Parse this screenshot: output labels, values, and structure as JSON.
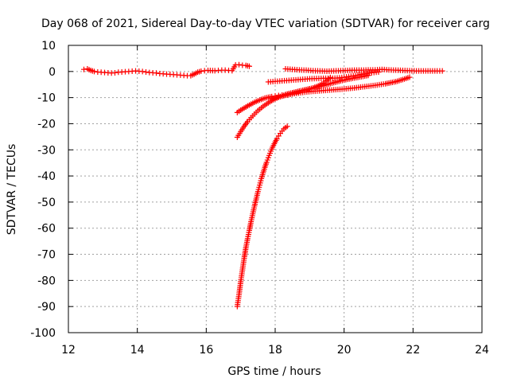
{
  "chart_data": {
    "type": "scatter",
    "title": "Day 068 of 2021, Sidereal Day-to-day VTEC variation (SDTVAR) for receiver carg",
    "xlabel": "GPS time / hours",
    "ylabel": "SDTVAR / TECUs",
    "xlim": [
      12,
      24
    ],
    "ylim": [
      -100,
      10
    ],
    "xticks": [
      12,
      14,
      16,
      18,
      20,
      22,
      24
    ],
    "yticks": [
      10,
      0,
      -10,
      -20,
      -30,
      -40,
      -50,
      -60,
      -70,
      -80,
      -90,
      -100
    ],
    "grid": true,
    "marker": "plus",
    "color": "#ff0000",
    "series": [
      {
        "points": [
          [
            12.45,
            0.8
          ],
          [
            12.55,
            1.0
          ],
          [
            12.65,
            0.4
          ],
          [
            12.75,
            0.0
          ],
          [
            12.85,
            -0.2
          ],
          [
            12.95,
            -0.3
          ],
          [
            13.05,
            -0.4
          ],
          [
            13.15,
            -0.5
          ],
          [
            13.25,
            -0.6
          ],
          [
            13.35,
            -0.5
          ],
          [
            13.45,
            -0.3
          ],
          [
            13.55,
            -0.2
          ],
          [
            13.65,
            -0.1
          ],
          [
            13.75,
            0.0
          ],
          [
            13.85,
            0.1
          ],
          [
            13.95,
            0.2
          ],
          [
            14.05,
            0.1
          ],
          [
            14.15,
            0.0
          ],
          [
            14.25,
            -0.2
          ],
          [
            14.35,
            -0.4
          ],
          [
            14.45,
            -0.5
          ],
          [
            14.55,
            -0.6
          ],
          [
            14.65,
            -0.8
          ],
          [
            14.75,
            -0.9
          ],
          [
            14.85,
            -1.0
          ],
          [
            14.95,
            -1.1
          ],
          [
            15.05,
            -1.2
          ],
          [
            15.15,
            -1.3
          ],
          [
            15.25,
            -1.4
          ],
          [
            15.35,
            -1.5
          ],
          [
            15.45,
            -1.6
          ],
          [
            15.55,
            -1.6
          ],
          [
            15.65,
            -1.0
          ],
          [
            15.75,
            -0.3
          ],
          [
            15.85,
            0.1
          ],
          [
            15.95,
            0.3
          ],
          [
            16.05,
            0.4
          ],
          [
            16.25,
            0.3
          ],
          [
            16.35,
            0.4
          ],
          [
            16.45,
            0.5
          ],
          [
            16.55,
            0.5
          ],
          [
            16.65,
            0.4
          ],
          [
            16.75,
            0.3
          ],
          [
            16.85,
            2.5
          ],
          [
            16.95,
            2.6
          ],
          [
            17.05,
            2.4
          ],
          [
            17.15,
            2.3
          ],
          [
            17.25,
            2.0
          ]
        ]
      },
      {
        "points": [
          [
            18.3,
            1.0
          ],
          [
            18.5,
            0.8
          ],
          [
            18.7,
            0.6
          ],
          [
            18.9,
            0.5
          ],
          [
            19.1,
            0.3
          ],
          [
            19.3,
            0.2
          ],
          [
            19.5,
            0.1
          ],
          [
            19.7,
            0.2
          ],
          [
            19.9,
            0.3
          ],
          [
            20.1,
            0.4
          ],
          [
            20.3,
            0.5
          ],
          [
            20.5,
            0.5
          ],
          [
            20.7,
            0.6
          ],
          [
            20.9,
            0.6
          ],
          [
            21.1,
            0.8
          ],
          [
            21.3,
            0.6
          ],
          [
            21.5,
            0.5
          ],
          [
            21.7,
            0.4
          ],
          [
            21.9,
            0.3
          ],
          [
            22.1,
            0.2
          ],
          [
            22.3,
            0.2
          ],
          [
            22.5,
            0.2
          ],
          [
            22.7,
            0.2
          ],
          [
            22.85,
            0.2
          ]
        ]
      },
      {
        "points": [
          [
            17.8,
            -4.0
          ],
          [
            18.0,
            -3.8
          ],
          [
            18.2,
            -3.6
          ],
          [
            18.4,
            -3.4
          ],
          [
            18.6,
            -3.2
          ],
          [
            18.8,
            -3.0
          ],
          [
            19.0,
            -2.8
          ],
          [
            19.2,
            -2.7
          ],
          [
            19.4,
            -2.6
          ],
          [
            19.6,
            -2.6
          ],
          [
            19.8,
            -2.5
          ],
          [
            20.0,
            -2.2
          ],
          [
            20.2,
            -1.8
          ],
          [
            20.4,
            -1.4
          ],
          [
            20.6,
            -0.9
          ],
          [
            20.8,
            -0.5
          ],
          [
            21.0,
            -0.2
          ]
        ]
      },
      {
        "points": [
          [
            17.9,
            -10.5
          ],
          [
            18.1,
            -9.8
          ],
          [
            18.3,
            -9.0
          ],
          [
            18.5,
            -8.2
          ],
          [
            18.7,
            -7.5
          ],
          [
            18.9,
            -6.9
          ],
          [
            19.1,
            -6.3
          ],
          [
            19.3,
            -5.7
          ],
          [
            19.5,
            -5.0
          ],
          [
            19.7,
            -4.3
          ],
          [
            19.9,
            -3.6
          ],
          [
            20.1,
            -3.0
          ],
          [
            20.3,
            -2.5
          ],
          [
            20.5,
            -2.0
          ],
          [
            20.7,
            -1.5
          ]
        ]
      },
      {
        "points": [
          [
            16.9,
            -15.7
          ],
          [
            17.0,
            -14.8
          ],
          [
            17.1,
            -14.0
          ],
          [
            17.2,
            -13.2
          ],
          [
            17.3,
            -12.5
          ],
          [
            17.4,
            -11.8
          ],
          [
            17.5,
            -11.2
          ],
          [
            17.6,
            -10.7
          ],
          [
            17.7,
            -10.2
          ],
          [
            17.8,
            -9.9
          ],
          [
            17.9,
            -9.6
          ],
          [
            18.0,
            -9.4
          ],
          [
            18.1,
            -9.2
          ],
          [
            18.2,
            -9.0
          ],
          [
            18.3,
            -8.8
          ],
          [
            18.4,
            -8.5
          ],
          [
            18.5,
            -8.2
          ],
          [
            18.6,
            -7.9
          ],
          [
            18.7,
            -7.6
          ],
          [
            18.8,
            -7.3
          ],
          [
            18.9,
            -7.0
          ],
          [
            19.0,
            -6.7
          ],
          [
            19.1,
            -6.3
          ],
          [
            19.2,
            -5.8
          ],
          [
            19.3,
            -5.2
          ],
          [
            19.4,
            -4.5
          ],
          [
            19.5,
            -3.5
          ],
          [
            19.6,
            -2.3
          ]
        ]
      },
      {
        "points": [
          [
            17.9,
            -10.5
          ],
          [
            18.2,
            -9.4
          ],
          [
            18.5,
            -8.6
          ],
          [
            18.8,
            -8.0
          ],
          [
            19.1,
            -7.6
          ],
          [
            19.4,
            -7.3
          ],
          [
            19.7,
            -7.0
          ],
          [
            20.0,
            -6.7
          ],
          [
            20.3,
            -6.3
          ],
          [
            20.6,
            -5.8
          ],
          [
            20.9,
            -5.3
          ],
          [
            21.2,
            -4.7
          ],
          [
            21.5,
            -3.9
          ],
          [
            21.7,
            -3.1
          ],
          [
            21.9,
            -2.2
          ]
        ]
      },
      {
        "points": [
          [
            16.9,
            -25.2
          ],
          [
            17.0,
            -23.0
          ],
          [
            17.1,
            -21.0
          ],
          [
            17.2,
            -19.2
          ],
          [
            17.3,
            -17.7
          ],
          [
            17.4,
            -16.3
          ],
          [
            17.5,
            -15.0
          ],
          [
            17.6,
            -13.9
          ],
          [
            17.7,
            -12.9
          ],
          [
            17.8,
            -12.0
          ],
          [
            17.9,
            -11.2
          ],
          [
            18.0,
            -10.5
          ],
          [
            18.1,
            -9.9
          ],
          [
            18.2,
            -9.4
          ],
          [
            18.3,
            -8.9
          ],
          [
            18.4,
            -8.5
          ],
          [
            18.5,
            -8.2
          ]
        ]
      },
      {
        "points": [
          [
            16.9,
            -90.0
          ],
          [
            16.95,
            -85.5
          ],
          [
            17.0,
            -80.5
          ],
          [
            17.05,
            -76.0
          ],
          [
            17.1,
            -71.5
          ],
          [
            17.15,
            -67.5
          ],
          [
            17.2,
            -64.0
          ],
          [
            17.25,
            -60.8
          ],
          [
            17.3,
            -57.5
          ],
          [
            17.35,
            -54.5
          ],
          [
            17.4,
            -51.5
          ],
          [
            17.45,
            -48.8
          ],
          [
            17.5,
            -46.0
          ],
          [
            17.55,
            -43.5
          ],
          [
            17.6,
            -41.0
          ],
          [
            17.65,
            -38.8
          ],
          [
            17.7,
            -36.7
          ],
          [
            17.75,
            -34.8
          ],
          [
            17.8,
            -33.0
          ],
          [
            17.85,
            -31.3
          ],
          [
            17.9,
            -29.7
          ],
          [
            17.95,
            -28.3
          ],
          [
            18.0,
            -27.0
          ],
          [
            18.05,
            -25.8
          ],
          [
            18.1,
            -24.7
          ],
          [
            18.15,
            -23.7
          ],
          [
            18.2,
            -22.8
          ],
          [
            18.25,
            -22.0
          ],
          [
            18.3,
            -21.5
          ],
          [
            18.35,
            -21.0
          ]
        ]
      }
    ]
  }
}
